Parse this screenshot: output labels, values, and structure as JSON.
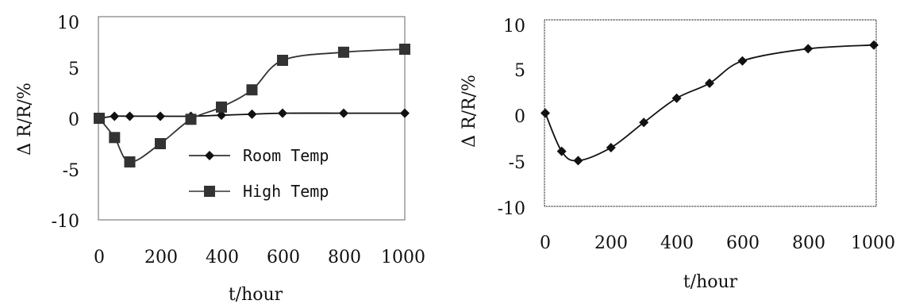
{
  "chart_data": [
    {
      "type": "line",
      "xlabel": "t/hour",
      "ylabel": "Δ R/R/%",
      "xlim": [
        0,
        1000
      ],
      "ylim": [
        -10,
        10
      ],
      "xticks": [
        "0",
        "200",
        "400",
        "600",
        "800",
        "1000"
      ],
      "yticks": [
        "10",
        "5",
        "0",
        "-5",
        "-10"
      ],
      "grid": false,
      "legend_position": "bottom-center",
      "series": [
        {
          "name": "Room Temp",
          "marker": "diamond",
          "x": [
            0,
            50,
            100,
            200,
            300,
            400,
            500,
            600,
            800,
            1000
          ],
          "y": [
            0,
            0.2,
            0.2,
            0.2,
            0.2,
            0.3,
            0.4,
            0.5,
            0.5,
            0.5
          ]
        },
        {
          "name": "High Temp",
          "marker": "square",
          "x": [
            0,
            50,
            100,
            200,
            300,
            400,
            500,
            600,
            800,
            1000
          ],
          "y": [
            0,
            -1.9,
            -4.3,
            -2.5,
            -0.1,
            1.1,
            2.8,
            5.7,
            6.5,
            6.8
          ]
        }
      ]
    },
    {
      "type": "line",
      "xlabel": "t/hour",
      "ylabel": "Δ R/R/%",
      "xlim": [
        0,
        1000
      ],
      "ylim": [
        -10,
        10
      ],
      "xticks": [
        "0",
        "200",
        "400",
        "600",
        "800",
        "1000"
      ],
      "yticks": [
        "10",
        "5",
        "0",
        "-5",
        "-10"
      ],
      "grid": false,
      "series": [
        {
          "marker": "diamond",
          "x": [
            0,
            50,
            100,
            200,
            300,
            400,
            500,
            600,
            800,
            1000
          ],
          "y": [
            0,
            -4.1,
            -5.1,
            -3.7,
            -1.0,
            1.6,
            3.2,
            5.6,
            6.9,
            7.3
          ]
        }
      ]
    }
  ]
}
